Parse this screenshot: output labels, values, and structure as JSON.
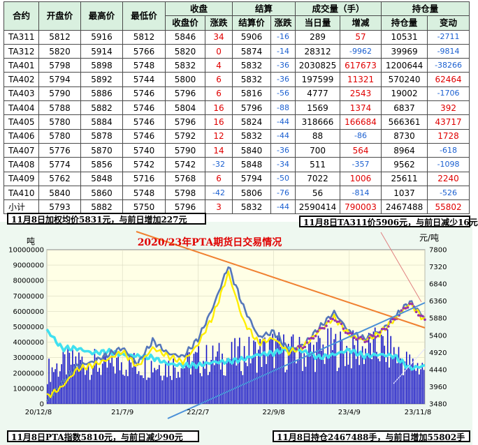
{
  "table": {
    "headers": {
      "contract": "合约",
      "open": "开盘价",
      "high": "最高价",
      "low": "最低价",
      "close_group": "收盘",
      "settle_group": "结算",
      "volume_group": "成交量（手）",
      "oi_group": "持仓量",
      "close_price": "收盘价",
      "close_change": "涨跌",
      "settle_price": "结算价",
      "settle_change": "涨跌",
      "volume_day": "当日量",
      "volume_change": "增减",
      "oi_amount": "持仓量",
      "oi_change": "变动"
    },
    "rows": [
      {
        "contract": "TA311",
        "open": "5812",
        "high": "5916",
        "low": "5812",
        "close": "5846",
        "close_chg": "34",
        "settle": "5906",
        "settle_chg": "-16",
        "vol": "289",
        "vol_chg": "57",
        "oi": "10531",
        "oi_chg": "-2711"
      },
      {
        "contract": "TA312",
        "open": "5820",
        "high": "5914",
        "low": "5766",
        "close": "5820",
        "close_chg": "0",
        "settle": "5874",
        "settle_chg": "-14",
        "vol": "28312",
        "vol_chg": "-9962",
        "oi": "39969",
        "oi_chg": "-9814"
      },
      {
        "contract": "TA401",
        "open": "5798",
        "high": "5898",
        "low": "5748",
        "close": "5832",
        "close_chg": "4",
        "settle": "5832",
        "settle_chg": "-36",
        "vol": "2030825",
        "vol_chg": "617673",
        "oi": "1200644",
        "oi_chg": "-38266"
      },
      {
        "contract": "TA402",
        "open": "5794",
        "high": "5892",
        "low": "5744",
        "close": "5800",
        "close_chg": "6",
        "settle": "5832",
        "settle_chg": "-36",
        "vol": "197599",
        "vol_chg": "11321",
        "oi": "570240",
        "oi_chg": "62464"
      },
      {
        "contract": "TA403",
        "open": "5790",
        "high": "5886",
        "low": "5746",
        "close": "5796",
        "close_chg": "6",
        "settle": "5816",
        "settle_chg": "-56",
        "vol": "4777",
        "vol_chg": "2543",
        "oi": "19002",
        "oi_chg": "-1706"
      },
      {
        "contract": "TA404",
        "open": "5788",
        "high": "5882",
        "low": "5746",
        "close": "5804",
        "close_chg": "16",
        "settle": "5796",
        "settle_chg": "-88",
        "vol": "1569",
        "vol_chg": "1374",
        "oi": "6837",
        "oi_chg": "392"
      },
      {
        "contract": "TA405",
        "open": "5780",
        "high": "5884",
        "low": "5746",
        "close": "5796",
        "close_chg": "16",
        "settle": "5824",
        "settle_chg": "-44",
        "vol": "318666",
        "vol_chg": "166684",
        "oi": "566361",
        "oi_chg": "43717"
      },
      {
        "contract": "TA406",
        "open": "5780",
        "high": "5878",
        "low": "5746",
        "close": "5792",
        "close_chg": "12",
        "settle": "5832",
        "settle_chg": "-44",
        "vol": "88",
        "vol_chg": "-86",
        "oi": "8730",
        "oi_chg": "1728"
      },
      {
        "contract": "TA407",
        "open": "5776",
        "high": "5870",
        "low": "5740",
        "close": "5790",
        "close_chg": "14",
        "settle": "5840",
        "settle_chg": "-36",
        "vol": "700",
        "vol_chg": "564",
        "oi": "8964",
        "oi_chg": "-618"
      },
      {
        "contract": "TA408",
        "open": "5774",
        "high": "5856",
        "low": "5742",
        "close": "5742",
        "close_chg": "-32",
        "settle": "5848",
        "settle_chg": "-34",
        "vol": "511",
        "vol_chg": "-357",
        "oi": "9562",
        "oi_chg": "-1098"
      },
      {
        "contract": "TA409",
        "open": "5762",
        "high": "5848",
        "low": "5716",
        "close": "5768",
        "close_chg": "6",
        "settle": "5794",
        "settle_chg": "-50",
        "vol": "7022",
        "vol_chg": "1006",
        "oi": "25611",
        "oi_chg": "2240"
      },
      {
        "contract": "TA410",
        "open": "5840",
        "high": "5860",
        "low": "5748",
        "close": "5798",
        "close_chg": "-42",
        "settle": "5806",
        "settle_chg": "-76",
        "vol": "56",
        "vol_chg": "-814",
        "oi": "1037",
        "oi_chg": "-526"
      },
      {
        "contract": "小计",
        "open": "5793",
        "high": "5882",
        "low": "5750",
        "close": "5796",
        "close_chg": "3",
        "settle": "5832",
        "settle_chg": "-44",
        "vol": "2590414",
        "vol_chg": "790003",
        "oi": "2467488",
        "oi_chg": "55802"
      }
    ]
  },
  "annotations": {
    "top_left": "11月8日加权均价5831元，与前日增加227元",
    "top_right": "11月8日TA311价5906元，与前日减少16元",
    "bottom_left": "11月8日PTA指数5810元，与前日减少90元",
    "bottom_right": "11月8日持仓2467488手，与前日增加55802手"
  },
  "colors": {
    "red_text": "#e00000",
    "blue_text": "#1a5fd0",
    "header_bg": "#d9f0df",
    "plot_bg": "#ffffe6",
    "frame_bg": "#eef8f0",
    "title": "#e00000",
    "volume_bar": "#1414c8",
    "oi_line": "#40e0f0",
    "price_line": "#5577bb",
    "index_line": "#ffee00",
    "purple_series": "#9933aa",
    "trend_down": "#f08030",
    "trend_up": "#4a90d8"
  },
  "chart_data": {
    "type": "line",
    "title": "2020/23年PTA期货日交易情况",
    "ylabel_left": "吨",
    "ylabel_right": "元/吨",
    "x_ticks": [
      "20/12/8",
      "21/7/9",
      "22/2/7",
      "22/9/8",
      "23/4/9",
      "23/11/8"
    ],
    "ylim_left": [
      0,
      10000000
    ],
    "y_ticks_left": [
      "0",
      "1000000",
      "2000000",
      "3000000",
      "4000000",
      "5000000",
      "6000000",
      "7000000",
      "8000000",
      "9000000",
      "10000000"
    ],
    "ylim_right": [
      3480,
      7800
    ],
    "y_ticks_right": [
      "3480",
      "3960",
      "4440",
      "4920",
      "5400",
      "5880",
      "6360",
      "6840",
      "7320",
      "7800"
    ],
    "x": [
      0,
      0.04,
      0.08,
      0.12,
      0.16,
      0.2,
      0.24,
      0.28,
      0.32,
      0.36,
      0.4,
      0.44,
      0.48,
      0.52,
      0.56,
      0.6,
      0.64,
      0.68,
      0.72,
      0.76,
      0.8,
      0.84,
      0.88,
      0.92,
      0.96,
      1.0
    ],
    "series": [
      {
        "axis": "right",
        "values": [
          3550,
          4050,
          4550,
          4650,
          4850,
          5050,
          4600,
          5250,
          4900,
          4800,
          5300,
          6200,
          7350,
          6200,
          5350,
          5500,
          4980,
          5150,
          5600,
          6050,
          5500,
          5300,
          5500,
          5900,
          6350,
          5880
        ]
      },
      {
        "axis": "right",
        "values": [
          3680,
          3950,
          4450,
          4560,
          4720,
          4950,
          4520,
          5050,
          4820,
          4650,
          5150,
          5950,
          7150,
          5800,
          5180,
          5320,
          4920,
          5100,
          5520,
          5900,
          5420,
          5250,
          5450,
          5850,
          6300,
          5810
        ]
      },
      {
        "axis": "left",
        "values": [
          4800000,
          3600000,
          3600000,
          3300000,
          3400000,
          3200000,
          3100000,
          3000000,
          2600000,
          2500000,
          2500000,
          2700000,
          2750000,
          2900000,
          3200000,
          3300000,
          3600000,
          3400000,
          3000000,
          3200000,
          3500000,
          3100000,
          3200000,
          3100000,
          2300000,
          2470000
        ]
      },
      {
        "axis": "left",
        "values": [
          2300000,
          2700000,
          3000000,
          2800000,
          2600000,
          2900000,
          2700000,
          2800000,
          2600000,
          2800000,
          3000000,
          3100000,
          3200000,
          3400000,
          3600000,
          3800000,
          3600000,
          3500000,
          3700000,
          3900000,
          3700000,
          3800000,
          3900000,
          3600000,
          2700000,
          2590000
        ]
      }
    ]
  }
}
